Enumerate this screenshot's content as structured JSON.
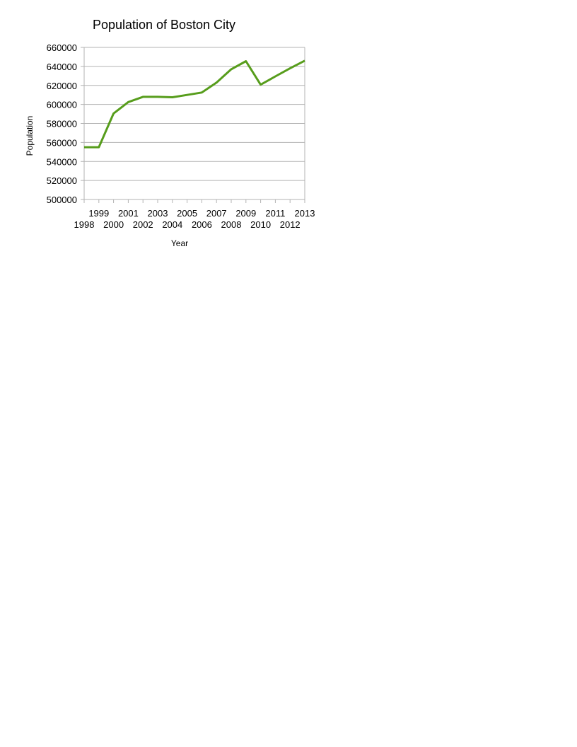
{
  "chart_data": {
    "type": "line",
    "title": "Population of Boston City",
    "xlabel": "Year",
    "ylabel": "Population",
    "x": [
      "1998",
      "1999",
      "2000",
      "2001",
      "2002",
      "2003",
      "2004",
      "2005",
      "2006",
      "2007",
      "2008",
      "2009",
      "2010",
      "2011",
      "2012",
      "2013"
    ],
    "series": [
      {
        "values": [
          555000,
          555000,
          590500,
          602500,
          608000,
          608000,
          607500,
          610000,
          612500,
          623000,
          637000,
          645500,
          620800,
          629500,
          638000,
          646000
        ]
      }
    ],
    "ylim": [
      500000,
      660000
    ],
    "yticks": [
      500000,
      520000,
      540000,
      560000,
      580000,
      600000,
      620000,
      640000,
      660000
    ],
    "ytick_labels": [
      "500000",
      "520000",
      "540000",
      "560000",
      "580000",
      "600000",
      "620000",
      "640000",
      "660000"
    ],
    "grid": true,
    "legend": "none",
    "line_color": "#579d1c",
    "grid_color": "#b3b3b3",
    "axis_color": "#b3b3b3"
  }
}
